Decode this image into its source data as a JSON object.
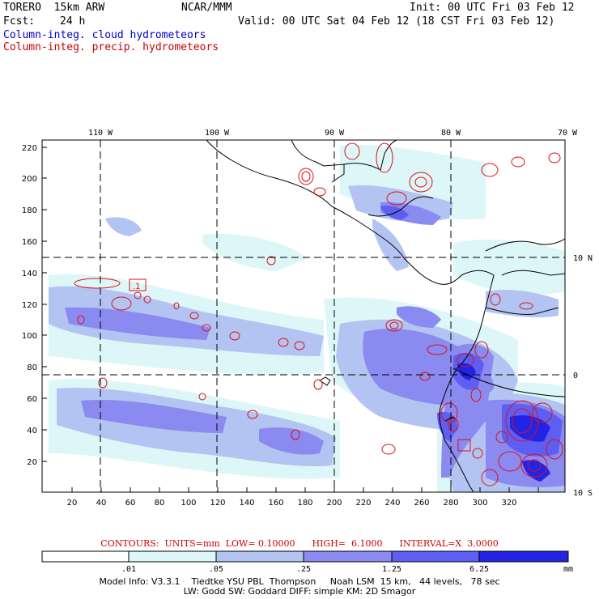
{
  "header": {
    "model": "TORERO  15km ARW",
    "org": "NCAR/MMM",
    "init": "Init: 00 UTC Fri 03 Feb 12",
    "fcst_label": "Fcst:",
    "fcst_value": "24 h",
    "valid": "Valid: 00 UTC Sat 04 Feb 12 (18 CST Fri 03 Feb 12)",
    "field1": "Column-integ. cloud hydrometeors",
    "field2": "Column-integ. precip. hydrometeors"
  },
  "axes": {
    "top_lon_labels": [
      "110 W",
      "100 W",
      "90 W",
      "80 W",
      "70 W"
    ],
    "right_lat_labels": [
      "10 N",
      "0",
      "10 S"
    ],
    "left_ticks": [
      "220",
      "200",
      "180",
      "160",
      "140",
      "120",
      "100",
      "80",
      "60",
      "40",
      "20"
    ],
    "bottom_ticks": [
      "20",
      "40",
      "60",
      "80",
      "100",
      "120",
      "140",
      "160",
      "180",
      "200",
      "220",
      "240",
      "260",
      "280",
      "300",
      "320"
    ]
  },
  "contour_box_label": ".1",
  "contours_line": "CONTOURS:  UNITS=mm  LOW= 0.10000      HIGH=  6.1000      INTERVAL=X  3.0000",
  "colorbar": {
    "labels": [
      ".01",
      ".05",
      ".25",
      "1.25",
      "6.25"
    ],
    "unit": "mm",
    "colors": [
      "#ffffff",
      "#ddf6f8",
      "#b4c4f2",
      "#8a8af0",
      "#5e5ef2",
      "#2323e6"
    ]
  },
  "footer": {
    "line1": "Model Info: V3.3.1    Tiedtke YSU PBL  Thompson     Noah LSM  15 km,   44 levels,   78 sec",
    "line2": "LW: Godd SW: Goddard DIFF: simple KM: 2D Smagor"
  }
}
